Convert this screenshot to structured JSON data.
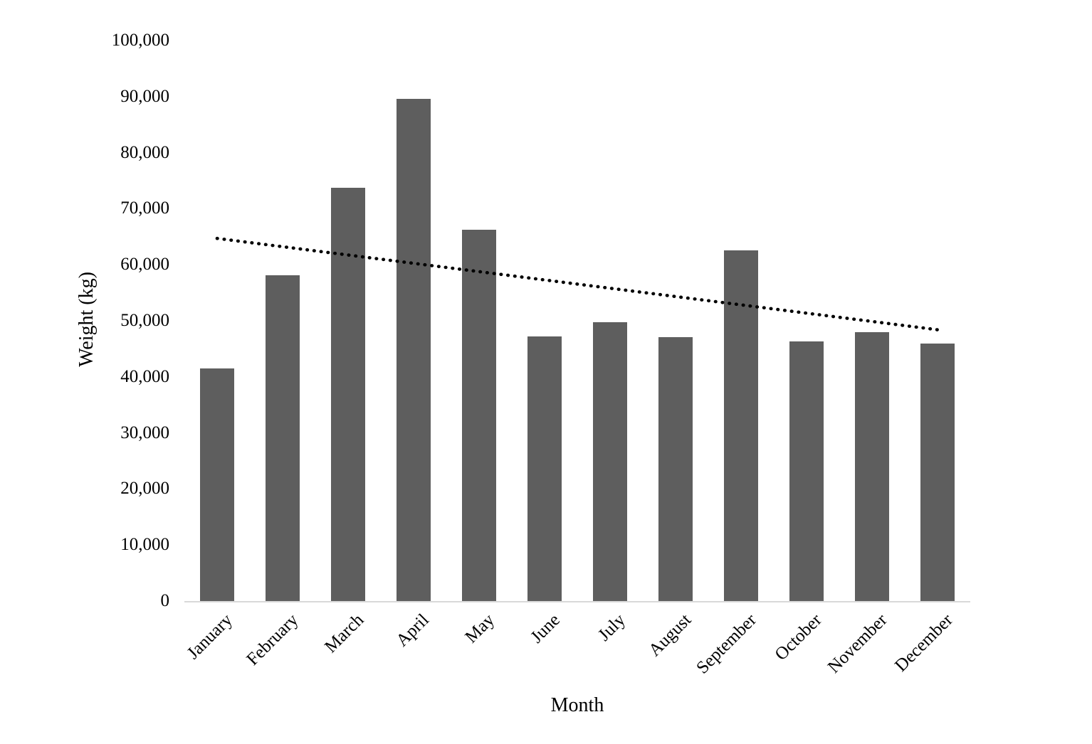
{
  "chart_data": {
    "type": "bar",
    "title": "",
    "xlabel": "Month",
    "ylabel": "Weight (kg)",
    "categories": [
      "January",
      "February",
      "March",
      "April",
      "May",
      "June",
      "July",
      "August",
      "September",
      "October",
      "November",
      "December"
    ],
    "values": [
      41500,
      58100,
      73700,
      89600,
      66200,
      47200,
      49700,
      47100,
      62600,
      46300,
      48000,
      45900
    ],
    "ylim": [
      0,
      100000
    ],
    "yticks": [
      {
        "value": 0,
        "label": "0"
      },
      {
        "value": 10000,
        "label": "10,000"
      },
      {
        "value": 20000,
        "label": "20,000"
      },
      {
        "value": 30000,
        "label": "30,000"
      },
      {
        "value": 40000,
        "label": "40,000"
      },
      {
        "value": 50000,
        "label": "50,000"
      },
      {
        "value": 60000,
        "label": "60,000"
      },
      {
        "value": 70000,
        "label": "70,000"
      },
      {
        "value": 80000,
        "label": "80,000"
      },
      {
        "value": 90000,
        "label": "90,000"
      },
      {
        "value": 100000,
        "label": "100,000"
      }
    ],
    "grid": false,
    "legend": "none",
    "colors": {
      "bar": "#5e5e5e",
      "axis_line": "#d9d9d9",
      "text": "#000000",
      "background": "#ffffff",
      "trendline": "#000000"
    },
    "trendline": {
      "type": "linear",
      "style": "dotted",
      "start_value": 64700,
      "end_value": 48400
    }
  }
}
